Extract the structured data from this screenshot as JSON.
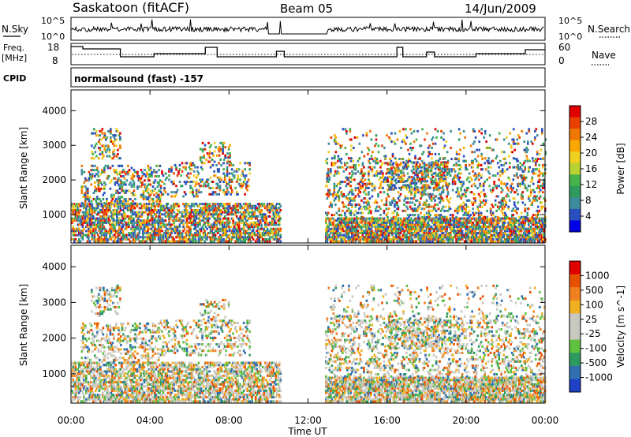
{
  "header": {
    "radar": "Saskatoon (fitACF)",
    "beam": "Beam 05",
    "date": "14/Jun/2009"
  },
  "top_panels": {
    "nsky": {
      "label": "N.Sky",
      "tick_hi": "10^5",
      "tick_lo": "10^0",
      "right_label": "N.Search",
      "right_tick_hi": "10^5",
      "right_tick_lo": "10^0"
    },
    "freq": {
      "label_line1": "Freq.",
      "label_line2": "[MHz]",
      "ticks": [
        "18",
        "8"
      ],
      "right_label": "Nave",
      "right_ticks": [
        "60",
        "0"
      ]
    },
    "cpid": {
      "label": "CPID",
      "text": "normalsound (fast) -157"
    }
  },
  "chart_data": [
    {
      "type": "heatmap",
      "title": "",
      "xlabel": "",
      "ylabel": "Slant Range [km]",
      "xlim": [
        0,
        24
      ],
      "ylim": [
        180,
        4600
      ],
      "yticks": [
        "1000",
        "2000",
        "3000",
        "4000"
      ],
      "colorbar": {
        "label": "Power [dB]",
        "ticks": [
          "4",
          "8",
          "12",
          "16",
          "20",
          "24",
          "28"
        ],
        "colors": [
          "#0000e6",
          "#2a4fc0",
          "#3c8c9c",
          "#2f9a5e",
          "#46b34c",
          "#b8d234",
          "#f0d020",
          "#f8a800",
          "#f07800",
          "#e84000",
          "#e00000"
        ]
      },
      "data_gaps": [
        [
          10.6,
          12.8
        ]
      ]
    },
    {
      "type": "heatmap",
      "title": "",
      "xlabel": "Time UT",
      "ylabel": "Slant Range [km]",
      "xlim": [
        0,
        24
      ],
      "ylim": [
        180,
        4600
      ],
      "x": [
        "00:00",
        "04:00",
        "08:00",
        "12:00",
        "16:00",
        "20:00",
        "00:00"
      ],
      "yticks": [
        "1000",
        "2000",
        "3000",
        "4000"
      ],
      "colorbar": {
        "label": "Velocity [m s^-1]",
        "ticks": [
          "1000",
          "500",
          "100",
          "25",
          "-25",
          "-100",
          "-500",
          "-1000"
        ],
        "colors": [
          "#2040c8",
          "#3070b0",
          "#2f9a5e",
          "#60c040",
          "#c8c8c0",
          "#c8c8c0",
          "#f0b020",
          "#f08020",
          "#e85000",
          "#e00000"
        ]
      },
      "data_gaps": [
        [
          10.6,
          12.8
        ]
      ]
    }
  ]
}
